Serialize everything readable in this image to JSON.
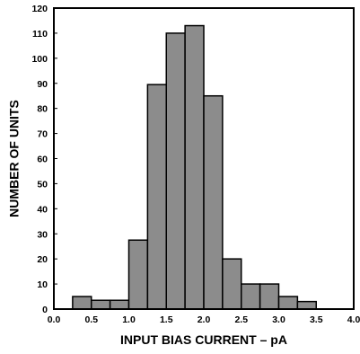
{
  "chart_data": {
    "type": "bar",
    "title": "",
    "xlabel": "INPUT BIAS CURRENT – pA",
    "ylabel": "NUMBER OF UNITS",
    "xlim": [
      0.0,
      4.0
    ],
    "ylim": [
      0,
      120
    ],
    "bin_width": 0.25,
    "x_ticks": [
      "0.0",
      "0.5",
      "1.0",
      "1.5",
      "2.0",
      "2.5",
      "3.0",
      "3.5",
      "4.0"
    ],
    "y_ticks": [
      "0",
      "10",
      "20",
      "30",
      "40",
      "50",
      "60",
      "70",
      "80",
      "90",
      "100",
      "110",
      "120"
    ],
    "bins": [
      {
        "start": 0.25,
        "end": 0.5,
        "value": 5
      },
      {
        "start": 0.5,
        "end": 0.75,
        "value": 3.5
      },
      {
        "start": 0.75,
        "end": 1.0,
        "value": 3.5
      },
      {
        "start": 1.0,
        "end": 1.25,
        "value": 27.5
      },
      {
        "start": 1.25,
        "end": 1.5,
        "value": 89.5
      },
      {
        "start": 1.5,
        "end": 1.75,
        "value": 110
      },
      {
        "start": 1.75,
        "end": 2.0,
        "value": 113
      },
      {
        "start": 2.0,
        "end": 2.25,
        "value": 85
      },
      {
        "start": 2.25,
        "end": 2.5,
        "value": 20
      },
      {
        "start": 2.5,
        "end": 2.75,
        "value": 10
      },
      {
        "start": 2.75,
        "end": 3.0,
        "value": 10
      },
      {
        "start": 3.0,
        "end": 3.25,
        "value": 5
      },
      {
        "start": 3.25,
        "end": 3.5,
        "value": 3
      }
    ],
    "colors": {
      "bar_fill": "#8c8c8c",
      "bar_stroke": "#000000",
      "background": "#ffffff",
      "axis": "#000000"
    },
    "grid": false,
    "legend": "none"
  }
}
